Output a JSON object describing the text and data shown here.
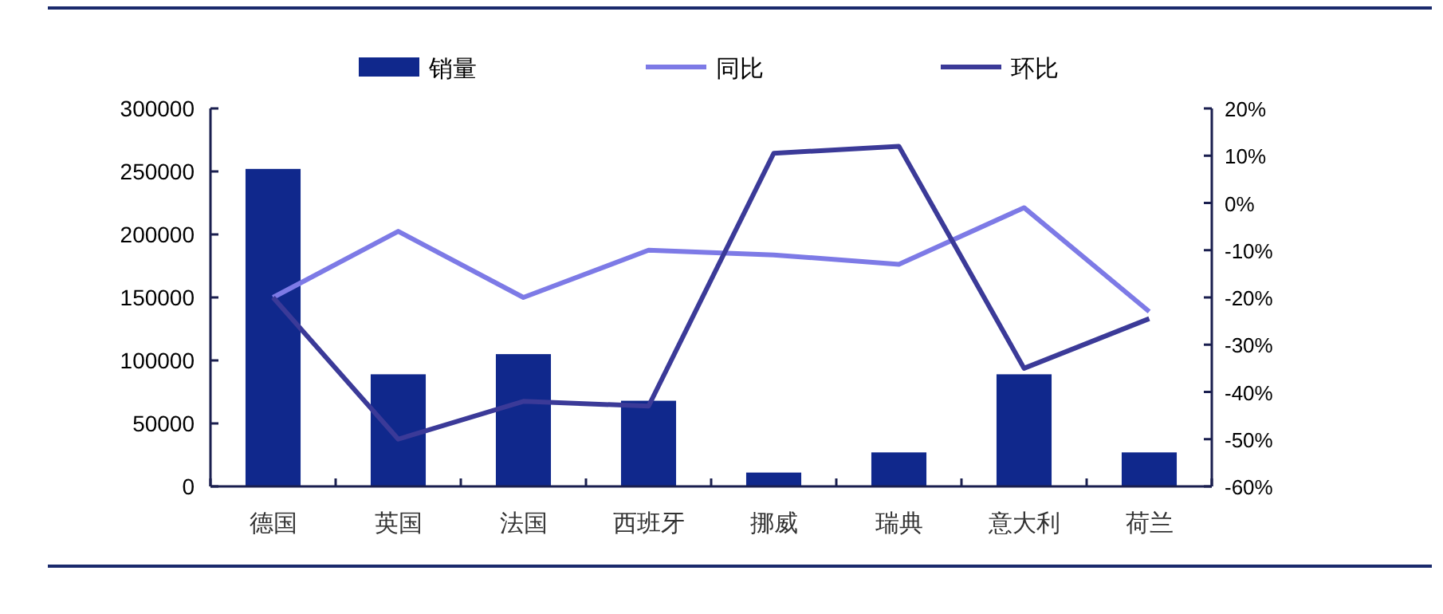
{
  "chart_data": {
    "type": "bar",
    "categories": [
      "德国",
      "英国",
      "法国",
      "西班牙",
      "挪威",
      "瑞典",
      "意大利",
      "荷兰"
    ],
    "series": [
      {
        "name": "销量",
        "color": "#10288c",
        "values": [
          252000,
          89000,
          105000,
          68000,
          11000,
          27000,
          89000,
          27000
        ]
      },
      {
        "name": "同比",
        "type": "line",
        "axis": "y2",
        "color": "#7d7ae6",
        "values": [
          -20,
          -6,
          -20,
          -10,
          -11,
          -13,
          -1,
          -23
        ]
      },
      {
        "name": "环比",
        "type": "line",
        "axis": "y2",
        "color": "#3b3a98",
        "values": [
          -20,
          -50,
          -42,
          -43,
          10.5,
          12,
          -35,
          -24.5
        ]
      }
    ],
    "ylim": [
      0,
      300000
    ],
    "yticks": [
      0,
      50000,
      100000,
      150000,
      200000,
      250000,
      300000
    ],
    "y2lim": [
      -60,
      20
    ],
    "y2ticks": [
      {
        "value": -60,
        "label": "-60%"
      },
      {
        "value": -50,
        "label": "-50%"
      },
      {
        "value": -40,
        "label": "-40%"
      },
      {
        "value": -30,
        "label": "-30%"
      },
      {
        "value": -20,
        "label": "-20%"
      },
      {
        "value": -10,
        "label": "-10%"
      },
      {
        "value": 0,
        "label": "0%"
      },
      {
        "value": 10,
        "label": "10%"
      },
      {
        "value": 20,
        "label": "20%"
      }
    ],
    "grid": false,
    "legend": "top"
  }
}
